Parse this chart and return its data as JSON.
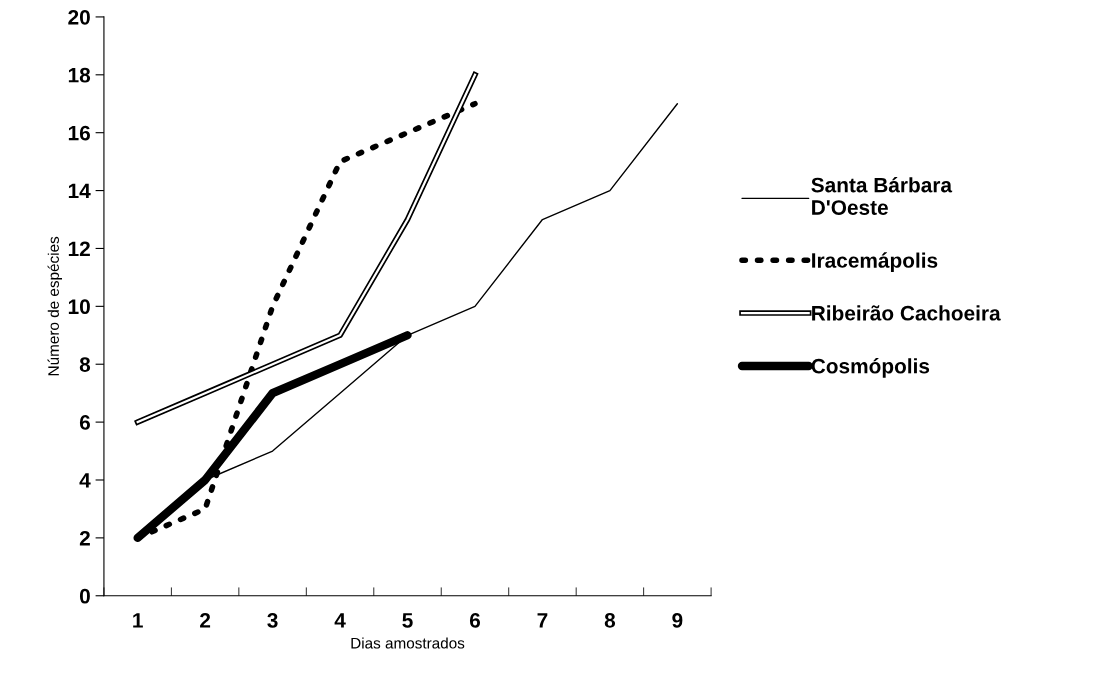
{
  "chart_data": {
    "type": "line",
    "xlabel": "Dias amostrados",
    "ylabel": "Número de espécies",
    "categories": [
      "1",
      "2",
      "3",
      "4",
      "5",
      "6",
      "7",
      "8",
      "9"
    ],
    "ylim": [
      0,
      20
    ],
    "yticks": [
      0,
      2,
      4,
      6,
      8,
      10,
      12,
      14,
      16,
      18,
      20
    ],
    "grid": false,
    "legend": "right",
    "marker": "none",
    "series": [
      {
        "name": "Santa Bárbara\nD'Oeste",
        "color": "#000000",
        "line_style": "solid",
        "values": [
          2,
          4,
          5,
          7,
          9,
          10,
          13,
          14,
          17
        ]
      },
      {
        "name": "Iracemápolis",
        "color": "#000000",
        "line_style": "dotted",
        "values": [
          2,
          3,
          10,
          15,
          16,
          17,
          null,
          null,
          null
        ]
      },
      {
        "name": "Ribeirão Cachoeira",
        "color": "#000000",
        "line_style": "solid",
        "values": [
          6,
          7,
          8,
          9,
          13,
          18,
          null,
          null,
          null
        ]
      },
      {
        "name": "Cosmópolis",
        "color": "#000000",
        "line_style": "solid",
        "values": [
          2,
          4,
          7,
          8,
          9,
          null,
          null,
          null,
          null
        ]
      }
    ]
  }
}
